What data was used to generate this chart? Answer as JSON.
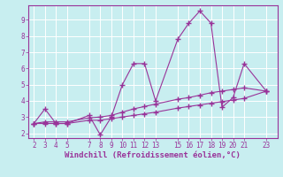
{
  "title": "",
  "xlabel": "Windchill (Refroidissement éolien,°C)",
  "ylabel": "",
  "xlim": [
    1.5,
    24.0
  ],
  "ylim": [
    1.7,
    9.9
  ],
  "xticks": [
    2,
    3,
    4,
    5,
    7,
    8,
    9,
    10,
    11,
    12,
    13,
    15,
    16,
    17,
    18,
    19,
    20,
    21,
    23
  ],
  "yticks": [
    2,
    3,
    4,
    5,
    6,
    7,
    8,
    9
  ],
  "bg_color": "#c8eef0",
  "grid_color": "#ffffff",
  "line_color": "#993399",
  "line1_x": [
    2,
    3,
    4,
    5,
    7,
    8,
    9,
    10,
    11,
    12,
    13,
    15,
    16,
    17,
    18,
    19,
    20,
    21,
    23
  ],
  "line1_y": [
    2.6,
    3.5,
    2.6,
    2.6,
    3.1,
    1.9,
    3.0,
    5.0,
    6.3,
    6.3,
    4.0,
    7.8,
    8.8,
    9.55,
    8.8,
    3.6,
    4.2,
    6.3,
    4.6
  ],
  "line2_x": [
    2,
    3,
    4,
    5,
    7,
    8,
    9,
    10,
    11,
    12,
    13,
    15,
    16,
    17,
    18,
    19,
    20,
    21,
    23
  ],
  "line2_y": [
    2.6,
    2.7,
    2.7,
    2.7,
    2.95,
    3.0,
    3.1,
    3.3,
    3.5,
    3.65,
    3.8,
    4.1,
    4.2,
    4.35,
    4.5,
    4.6,
    4.7,
    4.8,
    4.6
  ],
  "line3_x": [
    2,
    3,
    4,
    5,
    7,
    8,
    9,
    10,
    11,
    12,
    13,
    15,
    16,
    17,
    18,
    19,
    20,
    21,
    23
  ],
  "line3_y": [
    2.6,
    2.6,
    2.6,
    2.6,
    2.8,
    2.8,
    2.9,
    3.0,
    3.1,
    3.2,
    3.3,
    3.55,
    3.65,
    3.75,
    3.85,
    3.95,
    4.05,
    4.15,
    4.6
  ],
  "fontsize_label": 6.5,
  "fontsize_tick": 5.5
}
